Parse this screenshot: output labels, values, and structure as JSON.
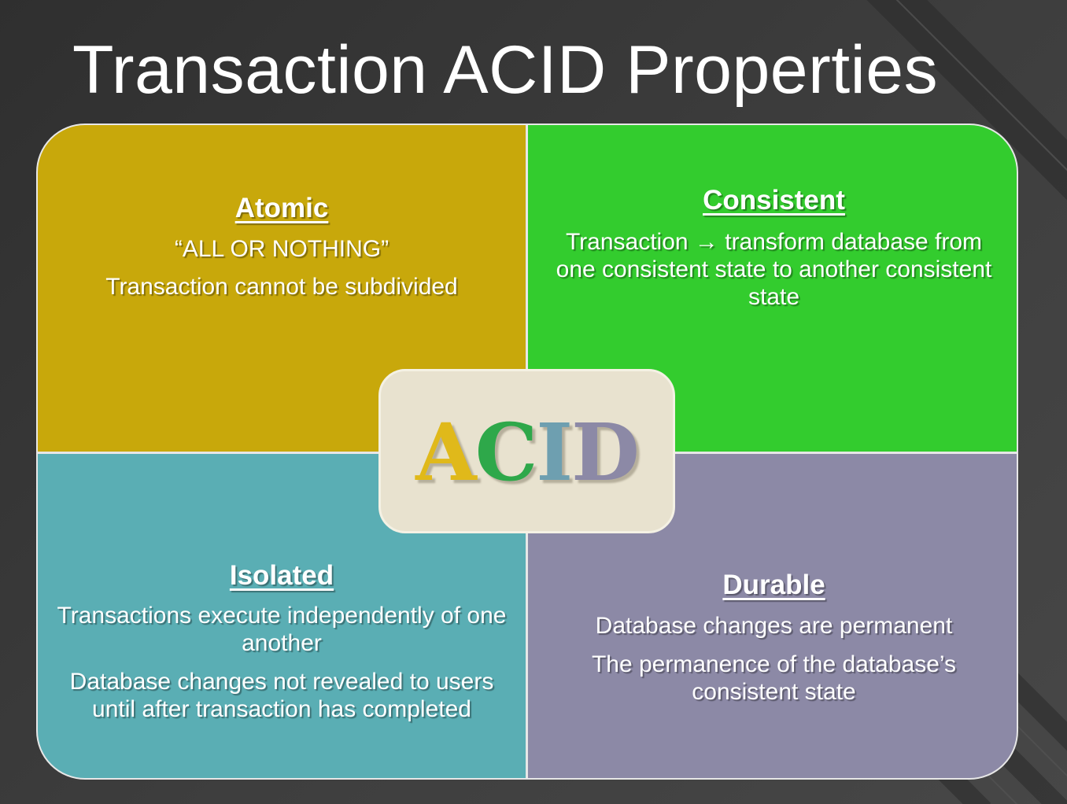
{
  "slide": {
    "title": "Transaction ACID Properties"
  },
  "quadrants": {
    "atomic": {
      "heading": "Atomic",
      "lines": [
        "“ALL OR NOTHING”",
        "Transaction cannot be subdivided"
      ],
      "color": "#c8a80b"
    },
    "consistent": {
      "heading": "Consistent",
      "lines": [
        "Transaction → transform database from one consistent state to another consistent state"
      ],
      "color": "#33cc2e"
    },
    "isolated": {
      "heading": "Isolated",
      "lines": [
        "Transactions execute independently of one another",
        "Database changes not revealed to users until after transaction has completed"
      ],
      "color": "#5aaeb4"
    },
    "durable": {
      "heading": "Durable",
      "lines": [
        "Database changes are permanent",
        "The permanence of the database’s consistent state"
      ],
      "color": "#8c89a6"
    }
  },
  "center": {
    "letters": [
      {
        "char": "A",
        "color": "#e0b91a"
      },
      {
        "char": "C",
        "color": "#2ea84a"
      },
      {
        "char": "I",
        "color": "#6e9fb0"
      },
      {
        "char": "D",
        "color": "#8c89a6"
      }
    ],
    "background": "#e8e2cf"
  }
}
